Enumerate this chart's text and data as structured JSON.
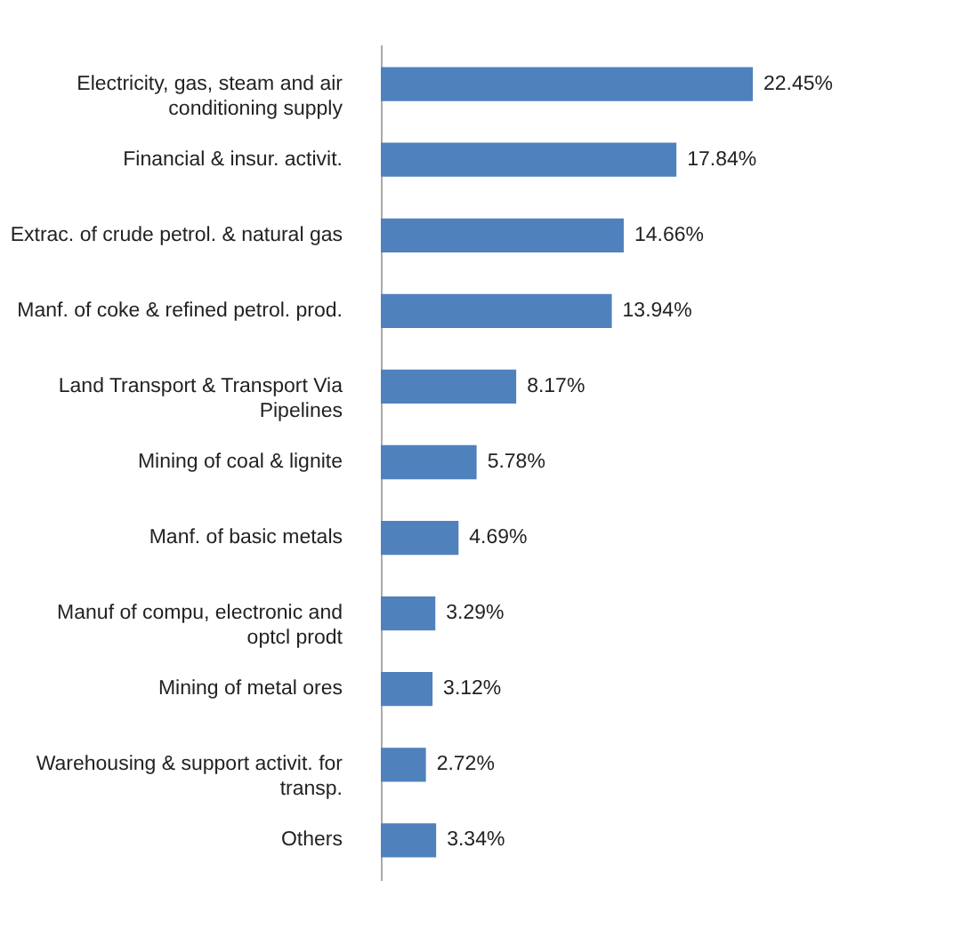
{
  "chart_data": {
    "type": "bar",
    "orientation": "horizontal",
    "categories": [
      "Electricity, gas, steam and air\nconditioning supply",
      "Financial & insur. activit.",
      "Extrac. of crude petrol. & natural gas",
      "Manf. of coke & refined petrol. prod.",
      "Land Transport & Transport Via\nPipelines",
      "Mining of coal & lignite",
      "Manf. of basic metals",
      "Manuf of compu, electronic and\noptcl prodt",
      "Mining of metal ores",
      "Warehousing & support activit. for\ntransp.",
      "Others"
    ],
    "values": [
      22.45,
      17.84,
      14.66,
      13.94,
      8.17,
      5.78,
      4.69,
      3.29,
      3.12,
      2.72,
      3.34
    ],
    "value_labels": [
      "22.45%",
      "17.84%",
      "14.66%",
      "13.94%",
      "8.17%",
      "5.78%",
      "4.69%",
      "3.29%",
      "3.12%",
      "2.72%",
      "3.34%"
    ],
    "color": "#4f81bd"
  }
}
